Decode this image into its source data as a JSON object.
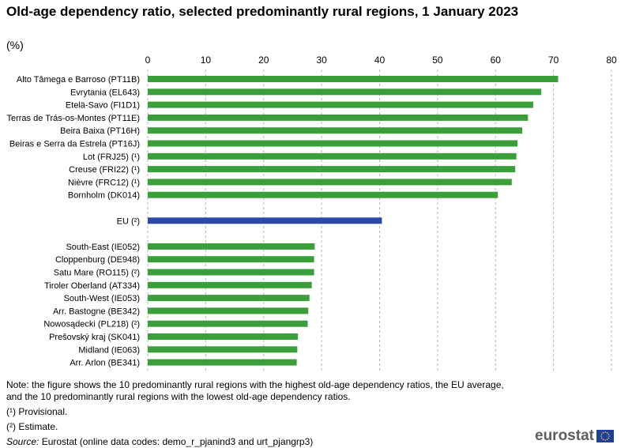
{
  "title": "Old-age dependency ratio, selected predominantly rural regions, 1 January 2023",
  "unit": "(%)",
  "colors": {
    "regions": "#3a9e3a",
    "eu": "#2e4aa8",
    "grid": "#b7b7b7"
  },
  "chart_data": {
    "type": "bar",
    "orientation": "horizontal",
    "xlim": [
      0,
      80
    ],
    "xticks": [
      "0",
      "10",
      "20",
      "30",
      "40",
      "50",
      "60",
      "70",
      "80"
    ],
    "grid": true,
    "bars": [
      {
        "label": "Alto Tâmega e Barroso (PT11B)",
        "value": 70.8,
        "group": "top"
      },
      {
        "label": "Evrytania (EL643)",
        "value": 67.9,
        "group": "top"
      },
      {
        "label": "Etelä-Savo (FI1D1)",
        "value": 66.5,
        "group": "top"
      },
      {
        "label": "Terras de Trás-os-Montes (PT11E)",
        "value": 65.6,
        "group": "top"
      },
      {
        "label": "Beira Baixa (PT16H)",
        "value": 64.6,
        "group": "top"
      },
      {
        "label": "Beiras e Serra da Estrela (PT16J)",
        "value": 63.8,
        "group": "top"
      },
      {
        "label": "Lot (FRJ25) (¹)",
        "value": 63.6,
        "group": "top"
      },
      {
        "label": "Creuse (FRI22) (¹)",
        "value": 63.4,
        "group": "top"
      },
      {
        "label": "Nièvre (FRC12) (¹)",
        "value": 62.8,
        "group": "top"
      },
      {
        "label": "Bornholm (DK014)",
        "value": 60.4,
        "group": "top"
      },
      {
        "label": "EU (²)",
        "value": 40.4,
        "group": "eu"
      },
      {
        "label": "South-East (IE052)",
        "value": 28.8,
        "group": "bottom"
      },
      {
        "label": "Cloppenburg (DE948)",
        "value": 28.7,
        "group": "bottom"
      },
      {
        "label": "Satu Mare (RO115) (²)",
        "value": 28.7,
        "group": "bottom"
      },
      {
        "label": "Tiroler Oberland (AT334)",
        "value": 28.3,
        "group": "bottom"
      },
      {
        "label": "South-West (IE053)",
        "value": 27.9,
        "group": "bottom"
      },
      {
        "label": "Arr. Bastogne (BE342)",
        "value": 27.7,
        "group": "bottom"
      },
      {
        "label": "Nowosądecki (PL218) (²)",
        "value": 27.6,
        "group": "bottom"
      },
      {
        "label": "Prešovský kraj (SK041)",
        "value": 25.9,
        "group": "bottom"
      },
      {
        "label": "Midland (IE063)",
        "value": 25.8,
        "group": "bottom"
      },
      {
        "label": "Arr. Arlon (BE341)",
        "value": 25.7,
        "group": "bottom"
      }
    ]
  },
  "notes": {
    "note": "Note: the figure shows the 10 predominantly rural regions with the highest old-age dependency ratios, the EU average, and the 10 predominantly rural regions with the lowest old-age dependency ratios.",
    "footnote1": "(¹) Provisional.",
    "footnote2": "(²) Estimate.",
    "source_label": "Source:",
    "source_text": " Eurostat (online data codes: demo_r_pjanind3 and urt_pjangrp3)"
  },
  "logo": {
    "text": "eurostat",
    "icon": "eu-flag-icon"
  }
}
